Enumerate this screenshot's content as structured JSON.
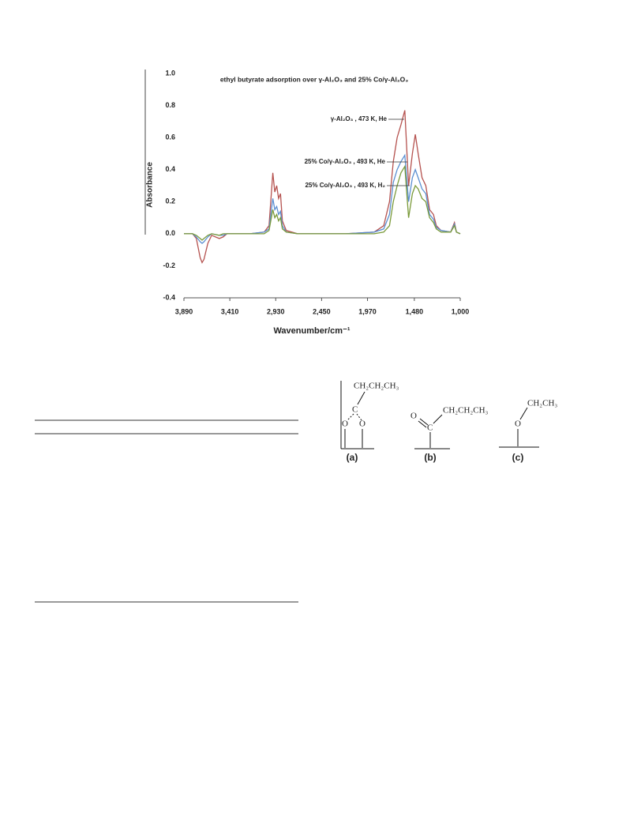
{
  "chart_data": {
    "type": "line",
    "title": "ethyl butyrate adsorption  over γ-Al₂O₃ and 25% Co/γ-Al₂O₃",
    "x_label": "Wavenumber/cm⁻¹",
    "y_label": "Absorbance",
    "annotations": [
      "γ-Al₂O₃ , 473 K, He",
      "25% Co/γ-Al₂O₃ , 493 K, He",
      "25% Co/γ-Al₂O₃ , 493 K, H₂"
    ],
    "x": [
      3890,
      3800,
      3760,
      3720,
      3700,
      3680,
      3640,
      3600,
      3520,
      3480,
      3440,
      3200,
      3050,
      3000,
      2960,
      2940,
      2920,
      2900,
      2880,
      2860,
      2820,
      2700,
      2200,
      1900,
      1800,
      1740,
      1700,
      1660,
      1620,
      1580,
      1540,
      1500,
      1470,
      1440,
      1400,
      1360,
      1320,
      1280,
      1250,
      1200,
      1100,
      1060,
      1040,
      1000
    ],
    "series": [
      {
        "color": "#b5524f",
        "values": [
          0,
          0,
          -0.03,
          -0.15,
          -0.18,
          -0.16,
          -0.06,
          -0.01,
          -0.03,
          -0.02,
          0,
          0,
          0.01,
          0.05,
          0.38,
          0.26,
          0.3,
          0.22,
          0.25,
          0.08,
          0.02,
          0,
          0,
          0.01,
          0.05,
          0.2,
          0.45,
          0.6,
          0.68,
          0.77,
          0.3,
          0.5,
          0.62,
          0.5,
          0.35,
          0.3,
          0.15,
          0.12,
          0.05,
          0.02,
          0.01,
          0.07,
          0.01,
          0
        ]
      },
      {
        "color": "#5b8fd1",
        "values": [
          0,
          0,
          -0.02,
          -0.05,
          -0.06,
          -0.05,
          -0.02,
          0,
          -0.01,
          -0.01,
          0,
          0,
          0.01,
          0.03,
          0.22,
          0.15,
          0.17,
          0.12,
          0.14,
          0.05,
          0.01,
          0,
          0,
          0.01,
          0.03,
          0.12,
          0.32,
          0.4,
          0.45,
          0.49,
          0.2,
          0.35,
          0.4,
          0.35,
          0.28,
          0.25,
          0.12,
          0.09,
          0.04,
          0.02,
          0.01,
          0.06,
          0.01,
          0
        ]
      },
      {
        "color": "#7a9a3a",
        "values": [
          0,
          0,
          -0.01,
          -0.03,
          -0.04,
          -0.03,
          -0.01,
          0,
          -0.01,
          0,
          0,
          0,
          0,
          0.02,
          0.15,
          0.1,
          0.12,
          0.08,
          0.1,
          0.03,
          0.01,
          0,
          0,
          0,
          0.01,
          0.05,
          0.2,
          0.3,
          0.38,
          0.42,
          0.1,
          0.25,
          0.3,
          0.28,
          0.22,
          0.2,
          0.1,
          0.07,
          0.03,
          0.01,
          0.01,
          0.05,
          0.01,
          0
        ]
      }
    ],
    "xlim": [
      3890,
      1000
    ],
    "xticks": [
      {
        "value": 3890,
        "label": "3,890"
      },
      {
        "value": 3410,
        "label": "3,410"
      },
      {
        "value": 2930,
        "label": "2,930"
      },
      {
        "value": 2450,
        "label": "2,450"
      },
      {
        "value": 1970,
        "label": "1,970"
      },
      {
        "value": 1480,
        "label": "1,480"
      },
      {
        "value": 1000,
        "label": "1,000"
      }
    ],
    "ylim": [
      -0.4,
      1
    ],
    "yticks": [
      {
        "value": 1,
        "label": "1.0"
      },
      0.8,
      0.6,
      0.4,
      0.2,
      {
        "value": 0,
        "label": "0.0"
      },
      -0.2,
      -0.4
    ],
    "grid": false
  },
  "diagram": {
    "structures": [
      {
        "label": "(a)",
        "atoms": [
          "CH₂CH₂CH₃",
          "C",
          "O",
          "O"
        ]
      },
      {
        "label": "(b)",
        "atoms": [
          "O",
          "C",
          "CH₂CH₂CH₃"
        ]
      },
      {
        "label": "(c)",
        "atoms": [
          "O",
          "CH₂CH₃"
        ]
      }
    ]
  }
}
